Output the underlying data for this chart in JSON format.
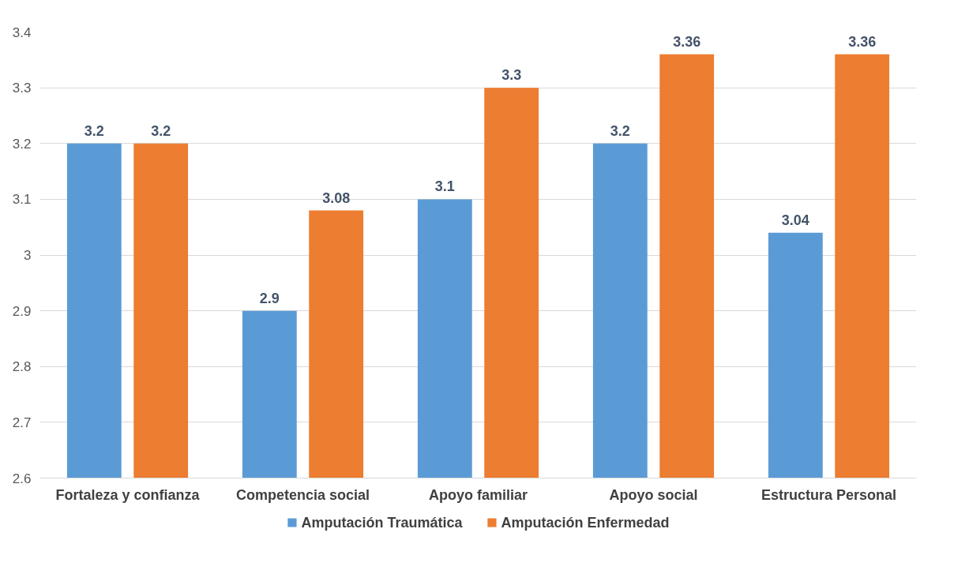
{
  "chart_data": {
    "type": "bar",
    "categories": [
      "Fortaleza y confianza",
      "Competencia social",
      "Apoyo familiar",
      "Apoyo social",
      "Estructura Personal"
    ],
    "series": [
      {
        "name": "Amputación Traumática",
        "color": "#5b9bd5",
        "values": [
          3.2,
          2.9,
          3.1,
          3.2,
          3.04
        ]
      },
      {
        "name": "Amputación Enfermedad",
        "color": "#ed7d31",
        "values": [
          3.2,
          3.08,
          3.3,
          3.36,
          3.36
        ]
      }
    ],
    "ylim": [
      2.6,
      3.4
    ],
    "yticks": [
      2.6,
      2.7,
      2.8,
      2.9,
      3,
      3.1,
      3.2,
      3.3,
      3.4
    ],
    "grid": "y",
    "legend": "bottom",
    "data_labels": true
  }
}
